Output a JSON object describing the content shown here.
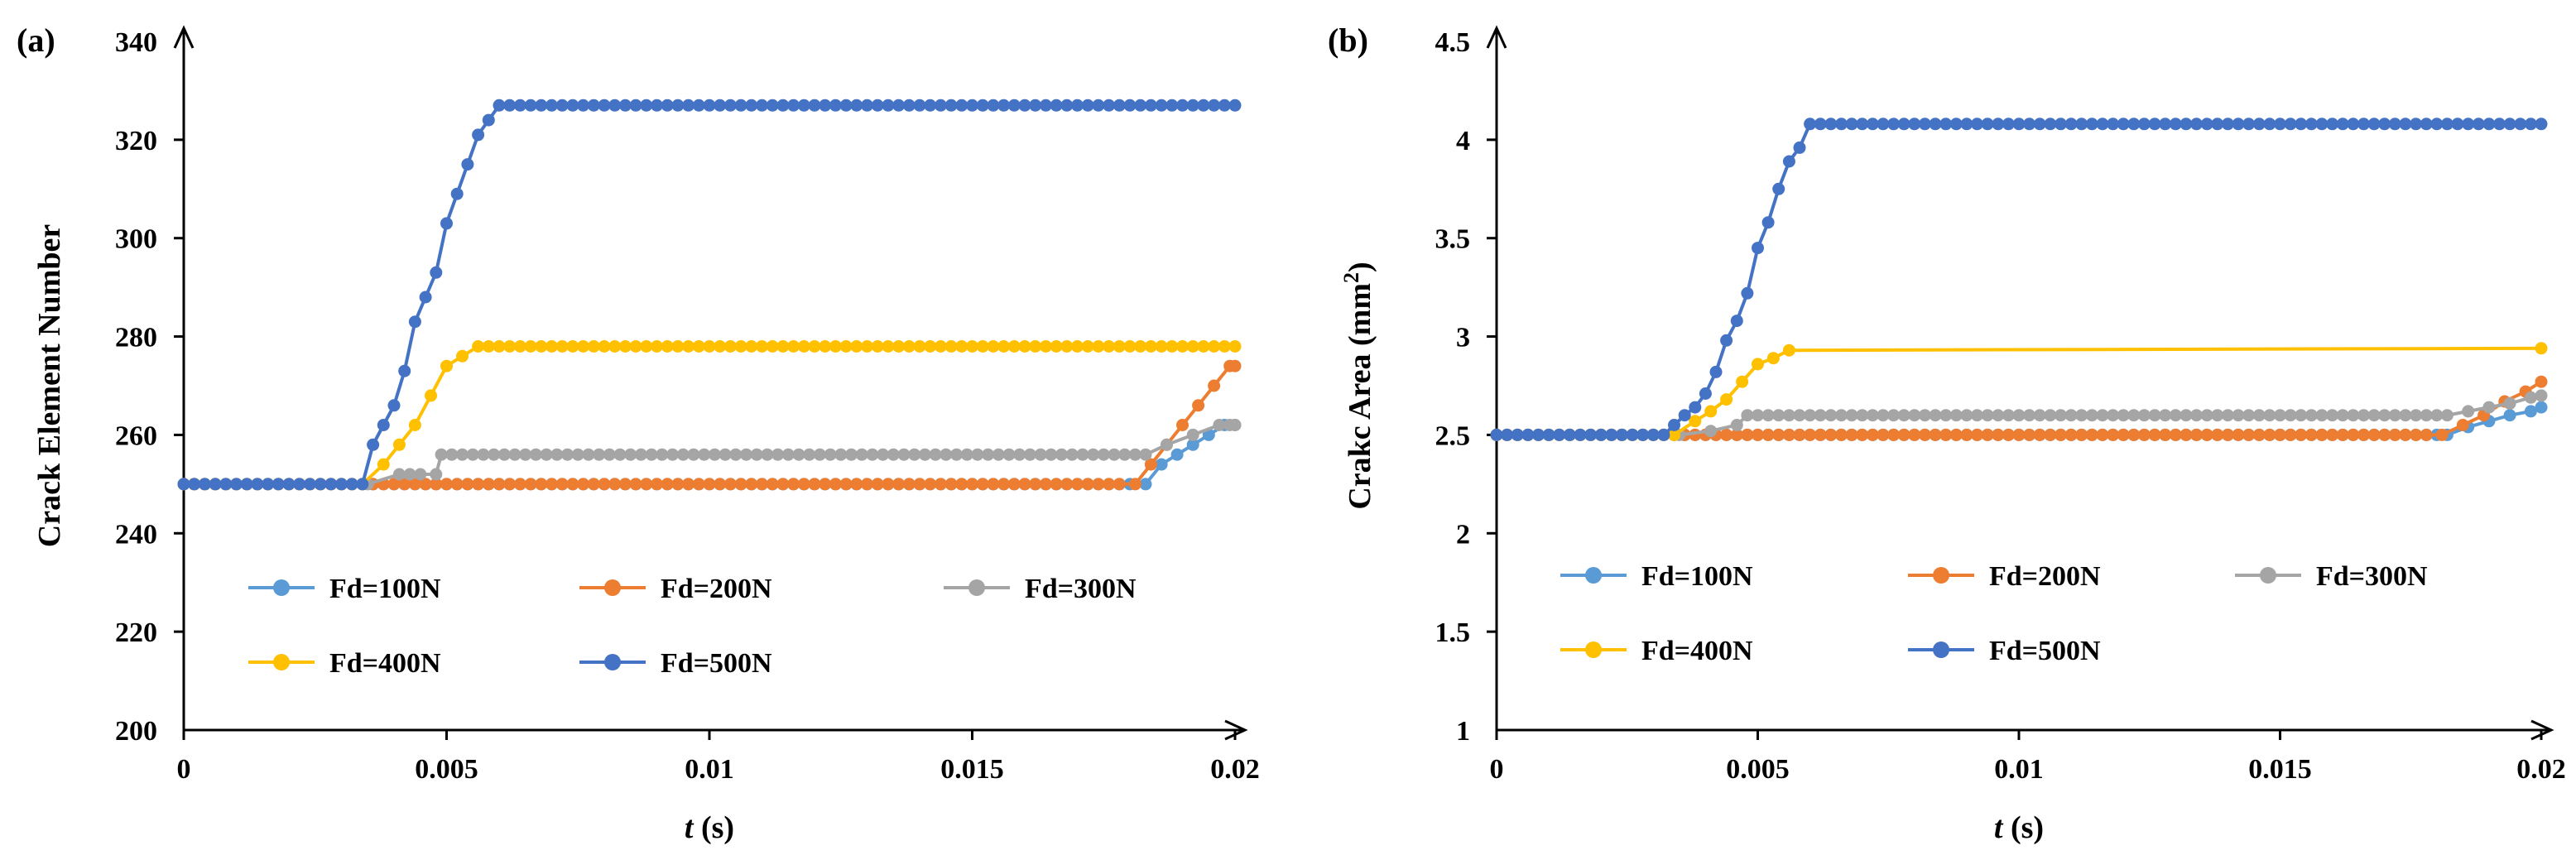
{
  "chart_data": [
    {
      "type": "line",
      "panel_label": "(a)",
      "title": "",
      "xlabel_var": "t",
      "xlabel_unit": " (s)",
      "ylabel": "Crack Element Number",
      "ylabel_sup": "",
      "ylabel_end": "",
      "xlim": [
        0,
        0.02
      ],
      "ylim": [
        200,
        340
      ],
      "x_ticks": [
        0,
        0.005,
        0.01,
        0.015,
        0.02
      ],
      "x_tick_labels": [
        "0",
        "0.005",
        "0.01",
        "0.015",
        "0.02"
      ],
      "y_ticks": [
        200,
        220,
        240,
        260,
        280,
        300,
        320,
        340
      ],
      "y_tick_labels": [
        "200",
        "220",
        "240",
        "260",
        "280",
        "300",
        "320",
        "340"
      ],
      "grid": false,
      "legend_position": "lower-middle",
      "series": [
        {
          "name": "Fd=100N",
          "color": "#5B9BD5",
          "points": [
            [
              0,
              250
            ],
            [
              0.0183,
              250
            ],
            [
              0.0186,
              254
            ],
            [
              0.0189,
              256
            ],
            [
              0.0192,
              258
            ],
            [
              0.0195,
              260
            ],
            [
              0.0198,
              262
            ],
            [
              0.02,
              262
            ]
          ]
        },
        {
          "name": "Fd=200N",
          "color": "#ED7D31",
          "points": [
            [
              0,
              250
            ],
            [
              0.0181,
              250
            ],
            [
              0.0184,
              254
            ],
            [
              0.0187,
              258
            ],
            [
              0.019,
              262
            ],
            [
              0.0193,
              266
            ],
            [
              0.0196,
              270
            ],
            [
              0.0199,
              274
            ],
            [
              0.02,
              274
            ]
          ]
        },
        {
          "name": "Fd=300N",
          "color": "#A5A5A5",
          "points": [
            [
              0,
              250
            ],
            [
              0.0035,
              250
            ],
            [
              0.0041,
              252
            ],
            [
              0.0048,
              252
            ],
            [
              0.0049,
              256
            ],
            [
              0.0183,
              256
            ],
            [
              0.0187,
              258
            ],
            [
              0.0192,
              260
            ],
            [
              0.0197,
              262
            ],
            [
              0.02,
              262
            ]
          ]
        },
        {
          "name": "Fd=400N",
          "color": "#FFC000",
          "points": [
            [
              0,
              250
            ],
            [
              0.0034,
              250
            ],
            [
              0.0038,
              254
            ],
            [
              0.0041,
              258
            ],
            [
              0.0044,
              262
            ],
            [
              0.0047,
              268
            ],
            [
              0.005,
              274
            ],
            [
              0.0053,
              276
            ],
            [
              0.0056,
              278
            ],
            [
              0.02,
              278
            ]
          ]
        },
        {
          "name": "Fd=500N",
          "color": "#4472C4",
          "points": [
            [
              0,
              250
            ],
            [
              0.0034,
              250
            ],
            [
              0.0036,
              258
            ],
            [
              0.0038,
              262
            ],
            [
              0.004,
              266
            ],
            [
              0.0042,
              273
            ],
            [
              0.0044,
              283
            ],
            [
              0.0046,
              288
            ],
            [
              0.0048,
              293
            ],
            [
              0.005,
              303
            ],
            [
              0.0052,
              309
            ],
            [
              0.0054,
              315
            ],
            [
              0.0056,
              321
            ],
            [
              0.0058,
              324
            ],
            [
              0.006,
              327
            ],
            [
              0.02,
              327
            ]
          ]
        }
      ]
    },
    {
      "type": "line",
      "panel_label": "(b)",
      "title": "",
      "xlabel_var": "t",
      "xlabel_unit": " (s)",
      "ylabel": "Crakc Area (mm",
      "ylabel_sup": "2",
      "ylabel_end": ")",
      "xlim": [
        0,
        0.02
      ],
      "ylim": [
        1,
        4.5
      ],
      "x_ticks": [
        0,
        0.005,
        0.01,
        0.015,
        0.02
      ],
      "x_tick_labels": [
        "0",
        "0.005",
        "0.01",
        "0.015",
        "0.02"
      ],
      "y_ticks": [
        1,
        1.5,
        2,
        2.5,
        3,
        3.5,
        4,
        4.5
      ],
      "y_tick_labels": [
        "1",
        "1.5",
        "2",
        "2.5",
        "3",
        "3.5",
        "4",
        "4.5"
      ],
      "grid": false,
      "legend_position": "lower-middle",
      "series": [
        {
          "name": "Fd=100N",
          "color": "#5B9BD5",
          "points": [
            [
              0,
              2.5
            ],
            [
              0.0182,
              2.5
            ],
            [
              0.0186,
              2.54
            ],
            [
              0.019,
              2.57
            ],
            [
              0.0194,
              2.6
            ],
            [
              0.0198,
              2.62
            ],
            [
              0.02,
              2.64
            ]
          ]
        },
        {
          "name": "Fd=200N",
          "color": "#ED7D31",
          "points": [
            [
              0,
              2.5
            ],
            [
              0.0181,
              2.5
            ],
            [
              0.0185,
              2.55
            ],
            [
              0.0189,
              2.6
            ],
            [
              0.0193,
              2.67
            ],
            [
              0.0197,
              2.72
            ],
            [
              0.02,
              2.77
            ]
          ]
        },
        {
          "name": "Fd=300N",
          "color": "#A5A5A5",
          "points": [
            [
              0,
              2.5
            ],
            [
              0.0035,
              2.5
            ],
            [
              0.0041,
              2.52
            ],
            [
              0.0046,
              2.55
            ],
            [
              0.0048,
              2.6
            ],
            [
              0.0182,
              2.6
            ],
            [
              0.0186,
              2.62
            ],
            [
              0.019,
              2.64
            ],
            [
              0.0194,
              2.66
            ],
            [
              0.0198,
              2.69
            ],
            [
              0.02,
              2.7
            ]
          ]
        },
        {
          "name": "Fd=400N",
          "color": "#FFC000",
          "points": [
            [
              0,
              2.5
            ],
            [
              0.0034,
              2.5
            ],
            [
              0.0038,
              2.57
            ],
            [
              0.0041,
              2.62
            ],
            [
              0.0044,
              2.68
            ],
            [
              0.0047,
              2.77
            ],
            [
              0.005,
              2.86
            ],
            [
              0.0053,
              2.89
            ],
            [
              0.0056,
              2.93
            ],
            [
              0.02,
              2.94
            ]
          ]
        },
        {
          "name": "Fd=500N",
          "color": "#4472C4",
          "points": [
            [
              0,
              2.5
            ],
            [
              0.0032,
              2.5
            ],
            [
              0.0034,
              2.55
            ],
            [
              0.0036,
              2.6
            ],
            [
              0.0038,
              2.64
            ],
            [
              0.004,
              2.71
            ],
            [
              0.0042,
              2.82
            ],
            [
              0.0044,
              2.98
            ],
            [
              0.0046,
              3.08
            ],
            [
              0.0048,
              3.22
            ],
            [
              0.005,
              3.45
            ],
            [
              0.0052,
              3.58
            ],
            [
              0.0054,
              3.75
            ],
            [
              0.0056,
              3.89
            ],
            [
              0.0058,
              3.96
            ],
            [
              0.006,
              4.08
            ],
            [
              0.02,
              4.08
            ]
          ]
        }
      ]
    }
  ]
}
